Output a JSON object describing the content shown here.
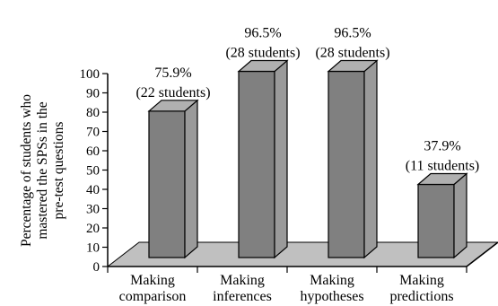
{
  "chart_data": {
    "type": "bar",
    "style": "3d",
    "categories": [
      [
        "Making",
        "comparison"
      ],
      [
        "Making",
        "inferences"
      ],
      [
        "Making",
        "hypotheses"
      ],
      [
        "Making",
        "predictions"
      ]
    ],
    "values": [
      75.9,
      96.5,
      96.5,
      37.9
    ],
    "data_labels": [
      [
        "75.9%",
        "(22 students)"
      ],
      [
        "96.5%",
        "(28 students)"
      ],
      [
        "96.5%",
        "(28 students)"
      ],
      [
        "37.9%",
        "(11 students)"
      ]
    ],
    "ylabel_lines": [
      "Percentage of students who",
      "mastered  the SPSs in the",
      "pre-test questions"
    ],
    "yticks": [
      0,
      10,
      20,
      30,
      40,
      50,
      60,
      70,
      80,
      90,
      100
    ],
    "ylim": [
      0,
      100
    ],
    "grid": false,
    "legend": "none",
    "colors": {
      "bar_front": "#808080",
      "bar_side": "#9a9a9a",
      "bar_top": "#b0b0b0",
      "floor": "#c0c0c0",
      "axis": "#000000"
    }
  }
}
